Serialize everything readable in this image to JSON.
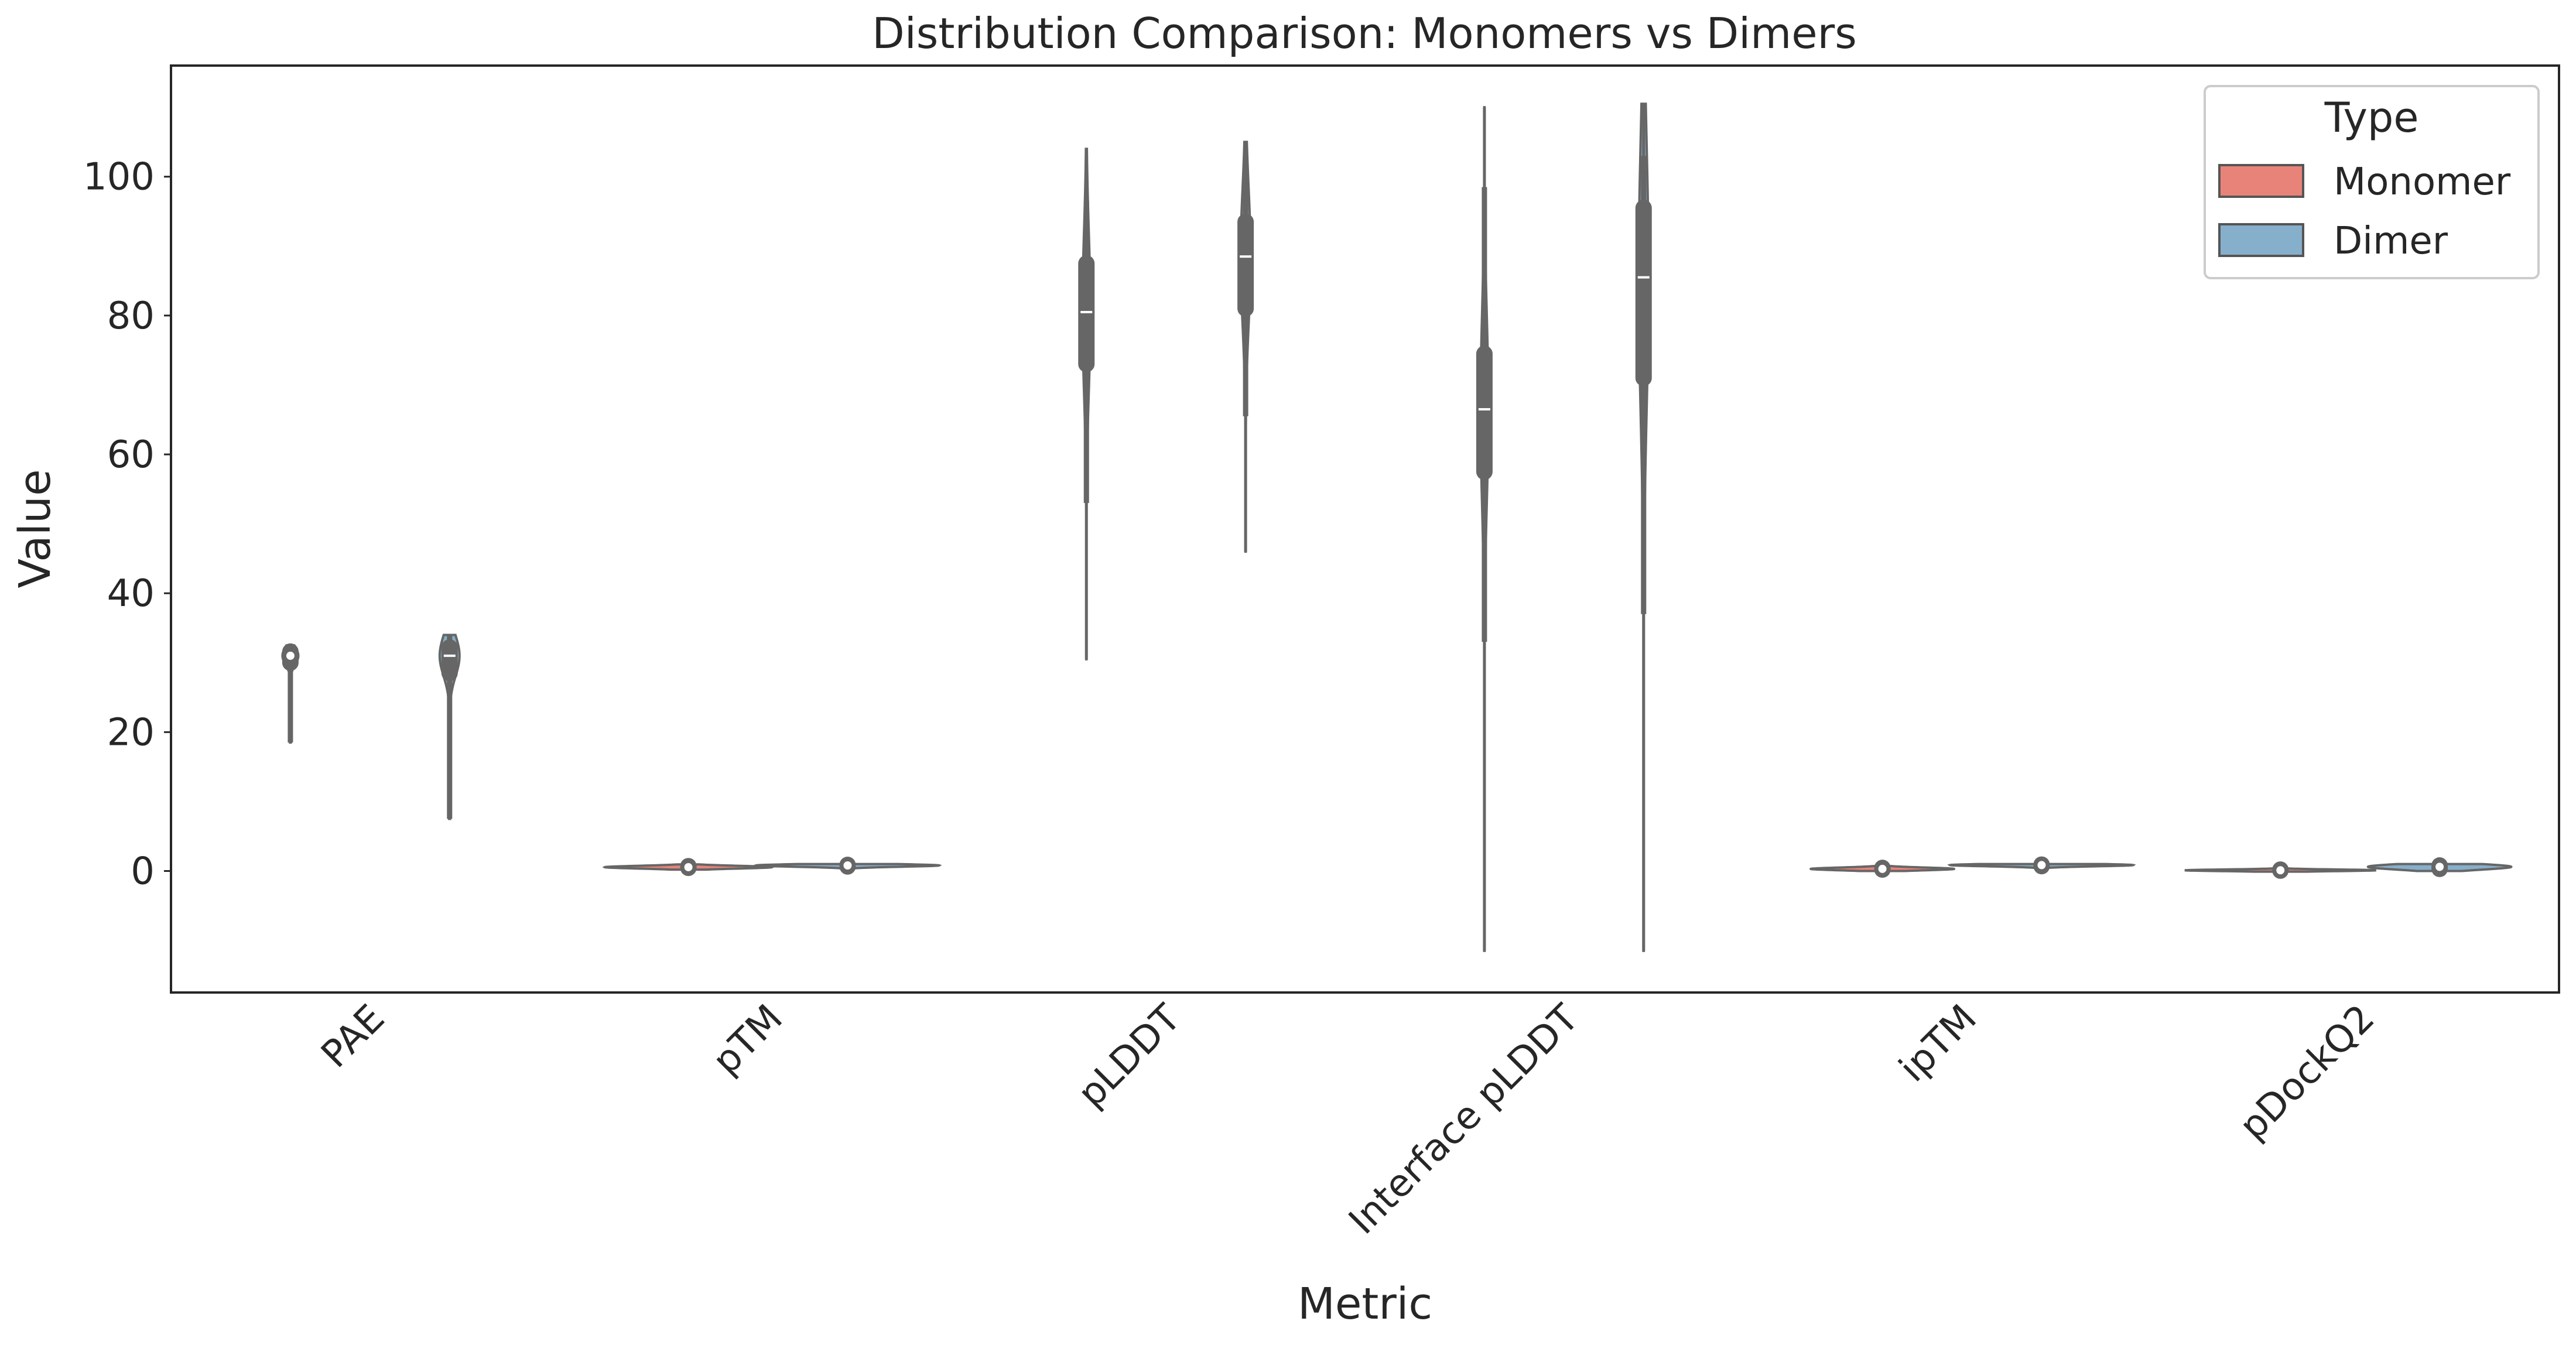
{
  "chart_data": {
    "type": "violin",
    "title": "Distribution Comparison: Monomers vs Dimers",
    "xlabel": "Metric",
    "ylabel": "Value",
    "ylim": [
      -17.5,
      116
    ],
    "yticks": [
      0,
      20,
      40,
      60,
      80,
      100
    ],
    "grid": false,
    "categories": [
      "PAE",
      "pTM",
      "pLDDT",
      "Interface pLDDT",
      "ipTM",
      "pDockQ2"
    ],
    "legend": {
      "title": "Type",
      "position": "top-right",
      "entries": [
        {
          "label": "Monomer",
          "color": "#e8837a"
        },
        {
          "label": "Dimer",
          "color": "#86afcb"
        }
      ]
    },
    "series": [
      {
        "name": "Monomer",
        "color": "#e8837a",
        "distributions": [
          {
            "min": 18.5,
            "q1": 30.0,
            "median": 31.0,
            "q3": 31.6,
            "max": 32.5,
            "whisker_low": 18.5,
            "whisker_high": 32.5,
            "width": 0.04
          },
          {
            "min": 0.2,
            "q1": 0.45,
            "median": 0.55,
            "q3": 0.7,
            "max": 0.95,
            "whisker_low": 0.2,
            "whisker_high": 0.95,
            "width": 0.42
          },
          {
            "min": 30.5,
            "q1": 73.0,
            "median": 80.5,
            "q3": 87.5,
            "max": 104.0,
            "whisker_low": 53.0,
            "whisker_high": 96.5,
            "width": 0.02
          },
          {
            "min": -11.5,
            "q1": 57.5,
            "median": 66.5,
            "q3": 74.5,
            "max": 110.0,
            "whisker_low": 33.0,
            "whisker_high": 98.5,
            "width": 0.02
          },
          {
            "min": 0.0,
            "q1": 0.2,
            "median": 0.3,
            "q3": 0.45,
            "max": 0.8,
            "whisker_low": 0.0,
            "whisker_high": 0.8,
            "width": 0.36
          },
          {
            "min": -0.1,
            "q1": 0.05,
            "median": 0.1,
            "q3": 0.2,
            "max": 0.45,
            "whisker_low": -0.1,
            "whisker_high": 0.45,
            "width": 0.48
          }
        ]
      },
      {
        "name": "Dimer",
        "color": "#86afcb",
        "distributions": [
          {
            "min": 7.5,
            "q1": 28.5,
            "median": 31.0,
            "q3": 32.2,
            "max": 34.0,
            "whisker_low": 7.5,
            "whisker_high": 34.0,
            "width": 0.05
          },
          {
            "min": 0.3,
            "q1": 0.65,
            "median": 0.8,
            "q3": 0.88,
            "max": 1.0,
            "whisker_low": 0.3,
            "whisker_high": 1.0,
            "width": 0.46
          },
          {
            "min": 46.0,
            "q1": 81.0,
            "median": 88.5,
            "q3": 93.5,
            "max": 105.0,
            "whisker_low": 65.5,
            "whisker_high": 100.0,
            "width": 0.025
          },
          {
            "min": -11.5,
            "q1": 71.0,
            "median": 85.5,
            "q3": 95.5,
            "max": 110.5,
            "whisker_low": 37.0,
            "whisker_high": 103.0,
            "width": 0.025
          },
          {
            "min": 0.2,
            "q1": 0.7,
            "median": 0.85,
            "q3": 0.92,
            "max": 1.0,
            "whisker_low": 0.2,
            "whisker_high": 1.0,
            "width": 0.46
          },
          {
            "min": 0.0,
            "q1": 0.3,
            "median": 0.6,
            "q3": 0.8,
            "max": 1.0,
            "whisker_low": 0.0,
            "whisker_high": 1.0,
            "width": 0.36
          }
        ]
      }
    ]
  }
}
